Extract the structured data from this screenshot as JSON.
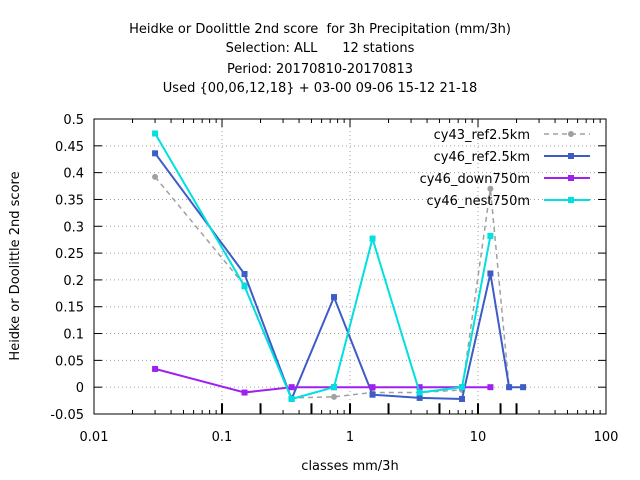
{
  "chart_data": {
    "type": "line",
    "title_lines": [
      "Heidke or Doolittle 2nd score  for 3h Precipitation (mm/3h)",
      "Selection: ALL      12 stations",
      "Period: 20170810-20170813",
      "Used {00,06,12,18} + 03-00 09-06 15-12 21-18"
    ],
    "xlabel": "classes mm/3h",
    "ylabel": "Heidke or Doolittle 2nd score",
    "x_scale": "log",
    "xlim": [
      0.01,
      100
    ],
    "ylim": [
      -0.05,
      0.5
    ],
    "x_ticks": [
      {
        "value": 0.01,
        "label": "0.01"
      },
      {
        "value": 0.1,
        "label": "0.1"
      },
      {
        "value": 1,
        "label": "1"
      },
      {
        "value": 10,
        "label": "10"
      },
      {
        "value": 100,
        "label": "100"
      }
    ],
    "y_ticks": [
      {
        "value": -0.05,
        "label": "-0.05"
      },
      {
        "value": 0,
        "label": "0"
      },
      {
        "value": 0.05,
        "label": "0.05"
      },
      {
        "value": 0.1,
        "label": "0.1"
      },
      {
        "value": 0.15,
        "label": "0.15"
      },
      {
        "value": 0.2,
        "label": "0.2"
      },
      {
        "value": 0.25,
        "label": "0.25"
      },
      {
        "value": 0.3,
        "label": "0.3"
      },
      {
        "value": 0.35,
        "label": "0.35"
      },
      {
        "value": 0.4,
        "label": "0.4"
      },
      {
        "value": 0.45,
        "label": "0.45"
      },
      {
        "value": 0.5,
        "label": "0.5"
      }
    ],
    "grid": true,
    "legend_position": "top-right",
    "class_limits": [
      0.1,
      0.2,
      0.5,
      1,
      2,
      5,
      10,
      15,
      20
    ],
    "series": [
      {
        "name": "cy43_ref2.5km",
        "color": "#a0a0a0",
        "dashed": true,
        "x": [
          0.03,
          0.15,
          0.35,
          0.75,
          1.5,
          3.5,
          7.5,
          12.5,
          17.5,
          22.5
        ],
        "y": [
          0.392,
          0.19,
          -0.02,
          -0.018,
          -0.01,
          -0.01,
          -0.005,
          0.37,
          0.0,
          0.0
        ]
      },
      {
        "name": "cy46_ref2.5km",
        "color": "#3c5cc8",
        "dashed": false,
        "x": [
          0.03,
          0.15,
          0.35,
          0.75,
          1.5,
          3.5,
          7.5,
          12.5,
          17.5,
          22.5
        ],
        "y": [
          0.436,
          0.211,
          -0.022,
          0.168,
          -0.014,
          -0.02,
          -0.022,
          0.212,
          0.0,
          0.0
        ]
      },
      {
        "name": "cy46_down750m",
        "color": "#a020f0",
        "dashed": false,
        "x": [
          0.03,
          0.15,
          0.35,
          0.75,
          1.5,
          3.5,
          7.5,
          12.5
        ],
        "y": [
          0.034,
          -0.01,
          0.0,
          0.0,
          0.0,
          0.0,
          0.0,
          0.0
        ]
      },
      {
        "name": "cy46_nest750m",
        "color": "#00e0e0",
        "dashed": false,
        "x": [
          0.03,
          0.15,
          0.35,
          0.75,
          1.5,
          3.5,
          7.5,
          12.5
        ],
        "y": [
          0.473,
          0.188,
          -0.022,
          0.0,
          0.277,
          -0.01,
          0.0,
          0.282
        ]
      }
    ]
  }
}
